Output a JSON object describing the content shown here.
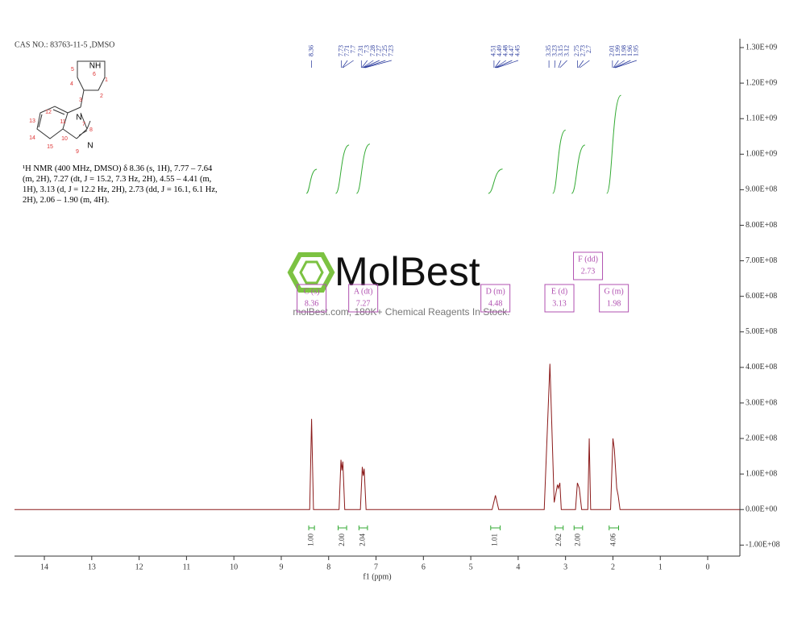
{
  "header": {
    "cas": "CAS NO.: 83763-11-5  ,DMSO",
    "nmr_text": "¹H NMR (400 MHz, DMSO) δ 8.36 (s, 1H), 7.77 – 7.64 (m, 2H), 7.27 (dt, J = 15.2, 7.3 Hz, 2H), 4.55 – 4.41 (m, 1H), 3.13 (d, J = 12.2 Hz, 2H), 2.73 (dd, J = 16.1, 6.1 Hz, 2H), 2.06 – 1.90 (m, 4H)."
  },
  "structure": {
    "atom_labels": [
      "NH",
      "N",
      "N"
    ],
    "atom_numbers": [
      5,
      6,
      1,
      4,
      2,
      3,
      7,
      12,
      11,
      13,
      8,
      14,
      10,
      15,
      9
    ]
  },
  "watermark": {
    "brand": "MolBest",
    "tagline": "molBest.com, 180K+ Chemical Reagents In Stock."
  },
  "chart_data": {
    "type": "line",
    "xlabel": "f1 (ppm)",
    "xlim": [
      14.63,
      -0.68
    ],
    "xticks": [
      14,
      13,
      12,
      11,
      10,
      9,
      8,
      7,
      6,
      5,
      4,
      3,
      2,
      1,
      0
    ],
    "ylim": [
      -131000000,
      1325000000
    ],
    "yticks": [
      {
        "value": 1300000000,
        "label": "1.30E+09"
      },
      {
        "value": 1200000000,
        "label": "1.20E+09"
      },
      {
        "value": 1100000000,
        "label": "1.10E+09"
      },
      {
        "value": 1000000000,
        "label": "1.00E+09"
      },
      {
        "value": 900000000,
        "label": "9.00E+08"
      },
      {
        "value": 800000000,
        "label": "8.00E+08"
      },
      {
        "value": 700000000,
        "label": "7.00E+08"
      },
      {
        "value": 600000000,
        "label": "6.00E+08"
      },
      {
        "value": 500000000,
        "label": "5.00E+08"
      },
      {
        "value": 400000000,
        "label": "4.00E+08"
      },
      {
        "value": 300000000,
        "label": "3.00E+08"
      },
      {
        "value": 200000000,
        "label": "2.00E+08"
      },
      {
        "value": 100000000,
        "label": "1.00E+08"
      },
      {
        "value": 0,
        "label": "0.00E+00"
      },
      {
        "value": -100000000,
        "label": "-1.00E+08"
      }
    ],
    "series": [
      {
        "color": "#8b1a1a",
        "x": [
          14.63,
          8.4,
          8.36,
          8.32,
          7.78,
          7.74,
          7.72,
          7.7,
          7.66,
          7.33,
          7.29,
          7.27,
          7.25,
          7.21,
          4.55,
          4.48,
          4.41,
          3.45,
          3.33,
          3.24,
          3.17,
          3.15,
          3.12,
          3.09,
          2.79,
          2.75,
          2.71,
          2.66,
          2.53,
          2.5,
          2.47,
          2.05,
          2.0,
          1.97,
          1.92,
          1.89,
          1.85,
          -0.68
        ],
        "values": [
          0,
          0,
          255000000,
          0,
          0,
          140000000,
          110000000,
          135000000,
          0,
          0,
          120000000,
          95000000,
          115000000,
          0,
          0,
          40000000,
          0,
          0,
          410000000,
          20000000,
          70000000,
          60000000,
          75000000,
          0,
          0,
          75000000,
          60000000,
          0,
          0,
          200000000,
          0,
          0,
          200000000,
          170000000,
          60000000,
          40000000,
          0,
          0
        ]
      }
    ],
    "peak_labels": [
      8.36,
      7.73,
      7.71,
      7.7,
      7.31,
      7.3,
      7.28,
      7.27,
      7.25,
      7.23,
      4.51,
      4.49,
      4.48,
      4.47,
      4.45,
      3.35,
      3.23,
      3.15,
      3.12,
      2.75,
      2.73,
      2.7,
      2.01,
      1.99,
      1.98,
      1.96,
      1.95
    ],
    "integrals": [
      {
        "from": 8.42,
        "to": 8.3,
        "value": 1.0,
        "label": "1.00"
      },
      {
        "from": 7.8,
        "to": 7.62,
        "value": 2.0,
        "label": "2.00"
      },
      {
        "from": 7.36,
        "to": 7.18,
        "value": 2.04,
        "label": "2.04"
      },
      {
        "from": 4.58,
        "to": 4.38,
        "value": 1.01,
        "label": "1.01"
      },
      {
        "from": 3.22,
        "to": 3.05,
        "value": 2.62,
        "label": "2.62"
      },
      {
        "from": 2.82,
        "to": 2.64,
        "value": 2.0,
        "label": "2.00"
      },
      {
        "from": 2.08,
        "to": 1.88,
        "value": 4.06,
        "label": "4.06"
      }
    ],
    "multiplets": [
      {
        "name": "C (s)",
        "shift": 8.36
      },
      {
        "name": "A (dt)",
        "shift": 7.27
      },
      {
        "name": "D (m)",
        "shift": 4.48
      },
      {
        "name": "E (d)",
        "shift": 3.13
      },
      {
        "name": "F (dd)",
        "shift": 2.73
      },
      {
        "name": "G (m)",
        "shift": 1.98
      }
    ]
  }
}
